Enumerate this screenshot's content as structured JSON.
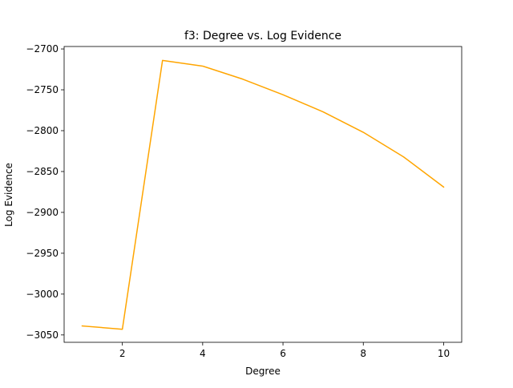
{
  "chart_data": {
    "type": "line",
    "title": "f3: Degree vs. Log Evidence",
    "xlabel": "Degree",
    "ylabel": "Log Evidence",
    "xlim": [
      0.55,
      10.45
    ],
    "ylim": [
      -3059,
      -2697
    ],
    "xticks": [
      2,
      4,
      6,
      8,
      10
    ],
    "yticks": [
      -3050,
      -3000,
      -2950,
      -2900,
      -2850,
      -2800,
      -2750,
      -2700
    ],
    "grid": false,
    "legend": "none",
    "series": [
      {
        "color": "#ffa500",
        "x": [
          1,
          2,
          3,
          4,
          5,
          6,
          7,
          8,
          9,
          10
        ],
        "y": [
          -3039,
          -3043,
          -2714,
          -2721,
          -2737,
          -2756,
          -2777,
          -2802,
          -2832,
          -2869
        ]
      }
    ]
  }
}
